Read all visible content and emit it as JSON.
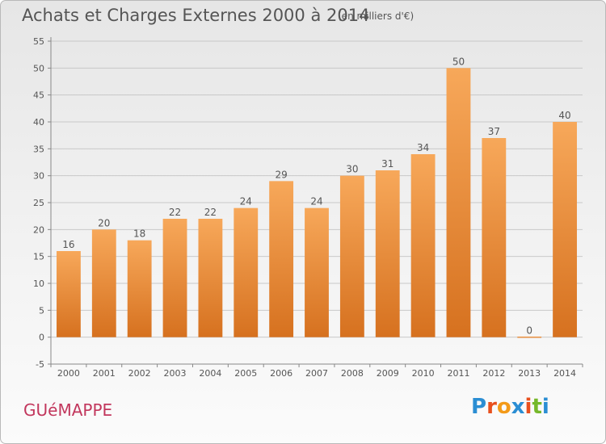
{
  "title": "Achats et Charges Externes 2000 à 2014",
  "subtitle": "(en milliers d'€)",
  "commune": "GUéMAPPE",
  "logo": {
    "text": "Proxiti",
    "letter_colors": [
      "#2b8ed3",
      "#e8501e",
      "#f39a19",
      "#2b8ed3",
      "#e8501e",
      "#76b82a",
      "#2b8ed3"
    ]
  },
  "colors": {
    "bar_light": "#f7a85a",
    "bar_dark": "#d6711f",
    "grid": "#c8c8c8",
    "axis": "#888888",
    "text": "#555555"
  },
  "chart_data": {
    "type": "bar",
    "title": "Achats et Charges Externes 2000 à 2014",
    "subtitle": "(en milliers d'€)",
    "categories": [
      "2000",
      "2001",
      "2002",
      "2003",
      "2004",
      "2005",
      "2006",
      "2007",
      "2008",
      "2009",
      "2010",
      "2011",
      "2012",
      "2013",
      "2014"
    ],
    "values": [
      16,
      20,
      18,
      22,
      22,
      24,
      29,
      24,
      30,
      31,
      34,
      50,
      37,
      0,
      40
    ],
    "data_labels": [
      "16",
      "20",
      "18",
      "22",
      "22",
      "24",
      "29",
      "24",
      "30",
      "31",
      "34",
      "50",
      "37",
      "0",
      "40"
    ],
    "yticks": [
      -5,
      0,
      5,
      10,
      15,
      20,
      25,
      30,
      35,
      40,
      45,
      50,
      55
    ],
    "ylim": [
      -5,
      55
    ],
    "xlabel": "",
    "ylabel": "",
    "grid": "horizontal",
    "legend": "none"
  }
}
